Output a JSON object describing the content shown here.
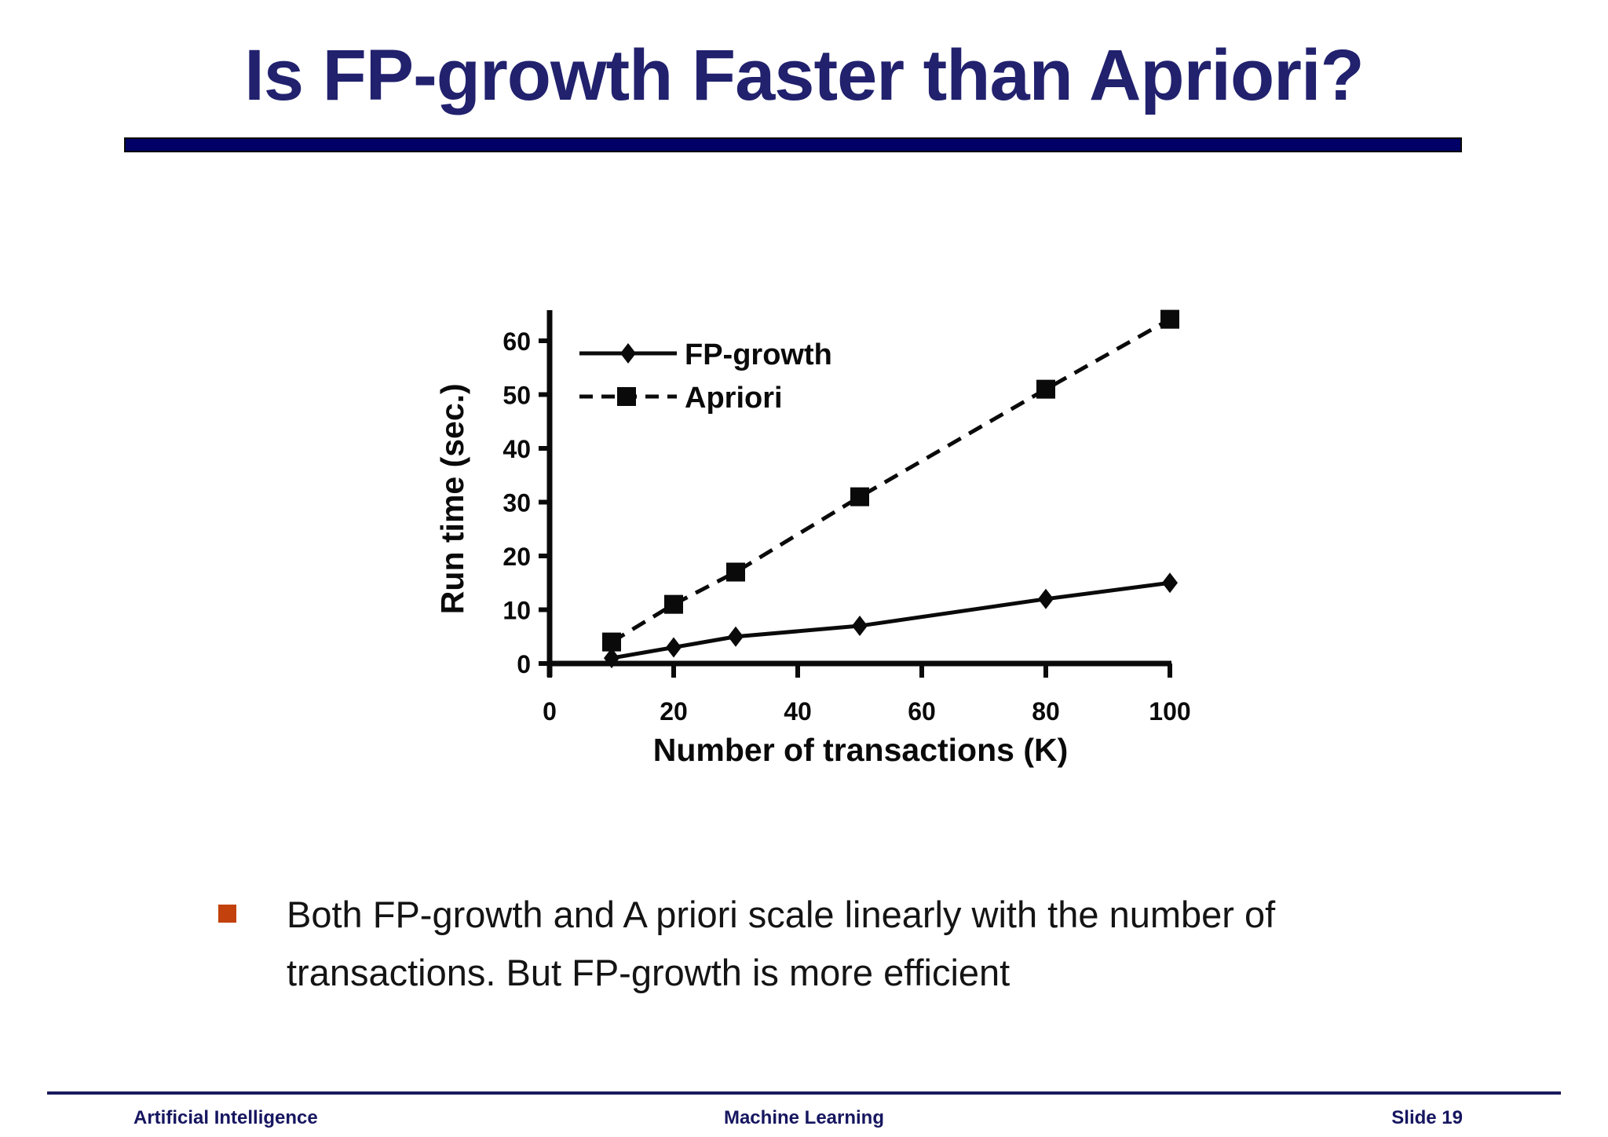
{
  "slide": {
    "title": "Is FP-growth Faster than Apriori?",
    "bullet": {
      "lines": [
        "Both FP-growth and A priori scale linearly with the number of",
        "transactions. But FP-growth is more efficient"
      ]
    },
    "footer": {
      "left": "Artificial Intelligence",
      "center": "Machine Learning",
      "right": "Slide 19"
    }
  },
  "colors": {
    "title_navy": "#21216e",
    "rule_fill": "#000066",
    "rule_border": "#0a0a0a",
    "footer_navy": "#161660",
    "footer_rule": "#1a1a5e",
    "bullet_marker": "#c2410c",
    "body_text": "#141414",
    "chart_ink": "#0a0a0a",
    "background": "#ffffff"
  },
  "chart_data": {
    "type": "line",
    "title": "",
    "xlabel": "Number of transactions (K)",
    "ylabel": "Run time (sec.)",
    "x": [
      10,
      20,
      30,
      50,
      80,
      100
    ],
    "series": [
      {
        "name": "FP-growth",
        "marker": "diamond",
        "line": "solid",
        "values": [
          1,
          3,
          5,
          7,
          12,
          15
        ]
      },
      {
        "name": "Apriori",
        "marker": "square",
        "line": "dashed",
        "values": [
          4,
          11,
          17,
          31,
          51,
          64
        ]
      }
    ],
    "xticks": [
      0,
      20,
      40,
      60,
      80,
      100
    ],
    "yticks": [
      0,
      10,
      20,
      30,
      40,
      50,
      60
    ],
    "xlim": [
      0,
      100
    ],
    "ylim": [
      0,
      66
    ],
    "legend_position": "top-left",
    "grid": false
  }
}
